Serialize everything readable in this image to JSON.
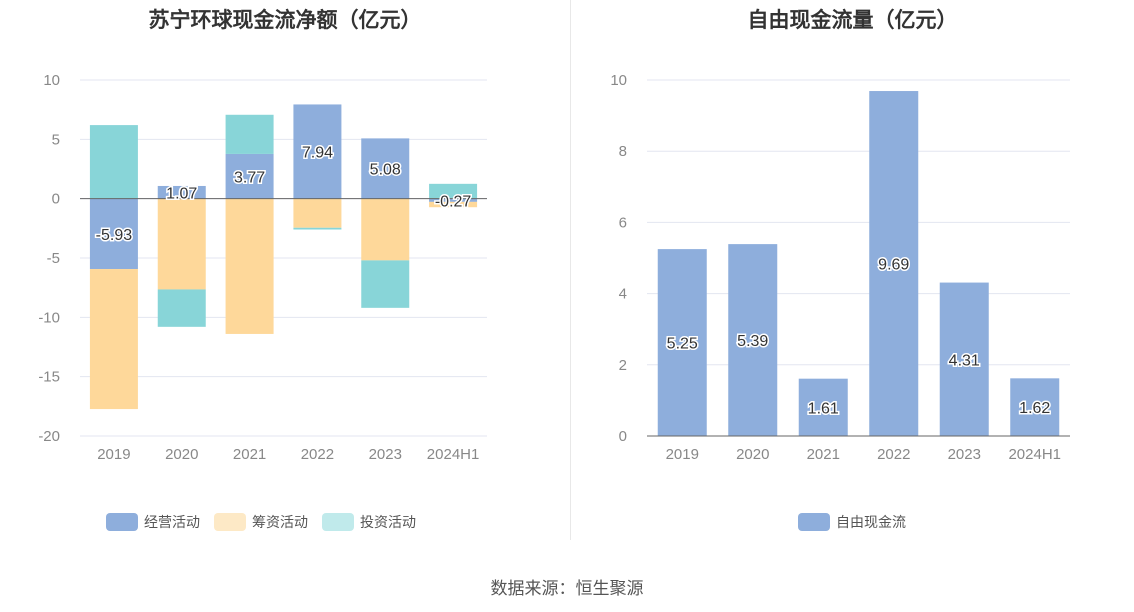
{
  "chart_data": [
    {
      "type": "bar",
      "stacked": true,
      "title": "苏宁环球现金流净额（亿元）",
      "categories": [
        "2019",
        "2020",
        "2021",
        "2022",
        "2023",
        "2024H1"
      ],
      "ylim": [
        -20,
        10
      ],
      "yticks": [
        10,
        5,
        0,
        -5,
        -10,
        -15,
        -20
      ],
      "series": [
        {
          "name": "经营活动",
          "color": "#8eaedc",
          "values": [
            -5.93,
            1.07,
            3.77,
            7.94,
            5.08,
            -0.27
          ],
          "labels": [
            "-5.93",
            "1.07",
            "3.77",
            "7.94",
            "5.08",
            "-0.27"
          ]
        },
        {
          "name": "筹资活动",
          "color": "#fed89a",
          "legend_color": "#fde9c6",
          "values": [
            -11.8,
            -7.65,
            -11.4,
            -2.45,
            -5.2,
            -0.45
          ]
        },
        {
          "name": "投资活动",
          "color": "#88d5d8",
          "legend_color": "#c0eaeb",
          "values": [
            6.2,
            -3.15,
            3.3,
            -0.15,
            -4.0,
            1.25
          ]
        }
      ],
      "legend": "bottom"
    },
    {
      "type": "bar",
      "title": "自由现金流量（亿元）",
      "categories": [
        "2019",
        "2020",
        "2021",
        "2022",
        "2023",
        "2024H1"
      ],
      "ylim": [
        0,
        10
      ],
      "yticks": [
        10,
        8,
        6,
        4,
        2,
        0
      ],
      "series": [
        {
          "name": "自由现金流",
          "color": "#8eaedc",
          "values": [
            5.25,
            5.39,
            1.61,
            9.69,
            4.31,
            1.62
          ],
          "labels": [
            "5.25",
            "5.39",
            "1.61",
            "9.69",
            "4.31",
            "1.62"
          ]
        }
      ],
      "legend": "bottom"
    }
  ],
  "source": "数据来源：恒生聚源"
}
